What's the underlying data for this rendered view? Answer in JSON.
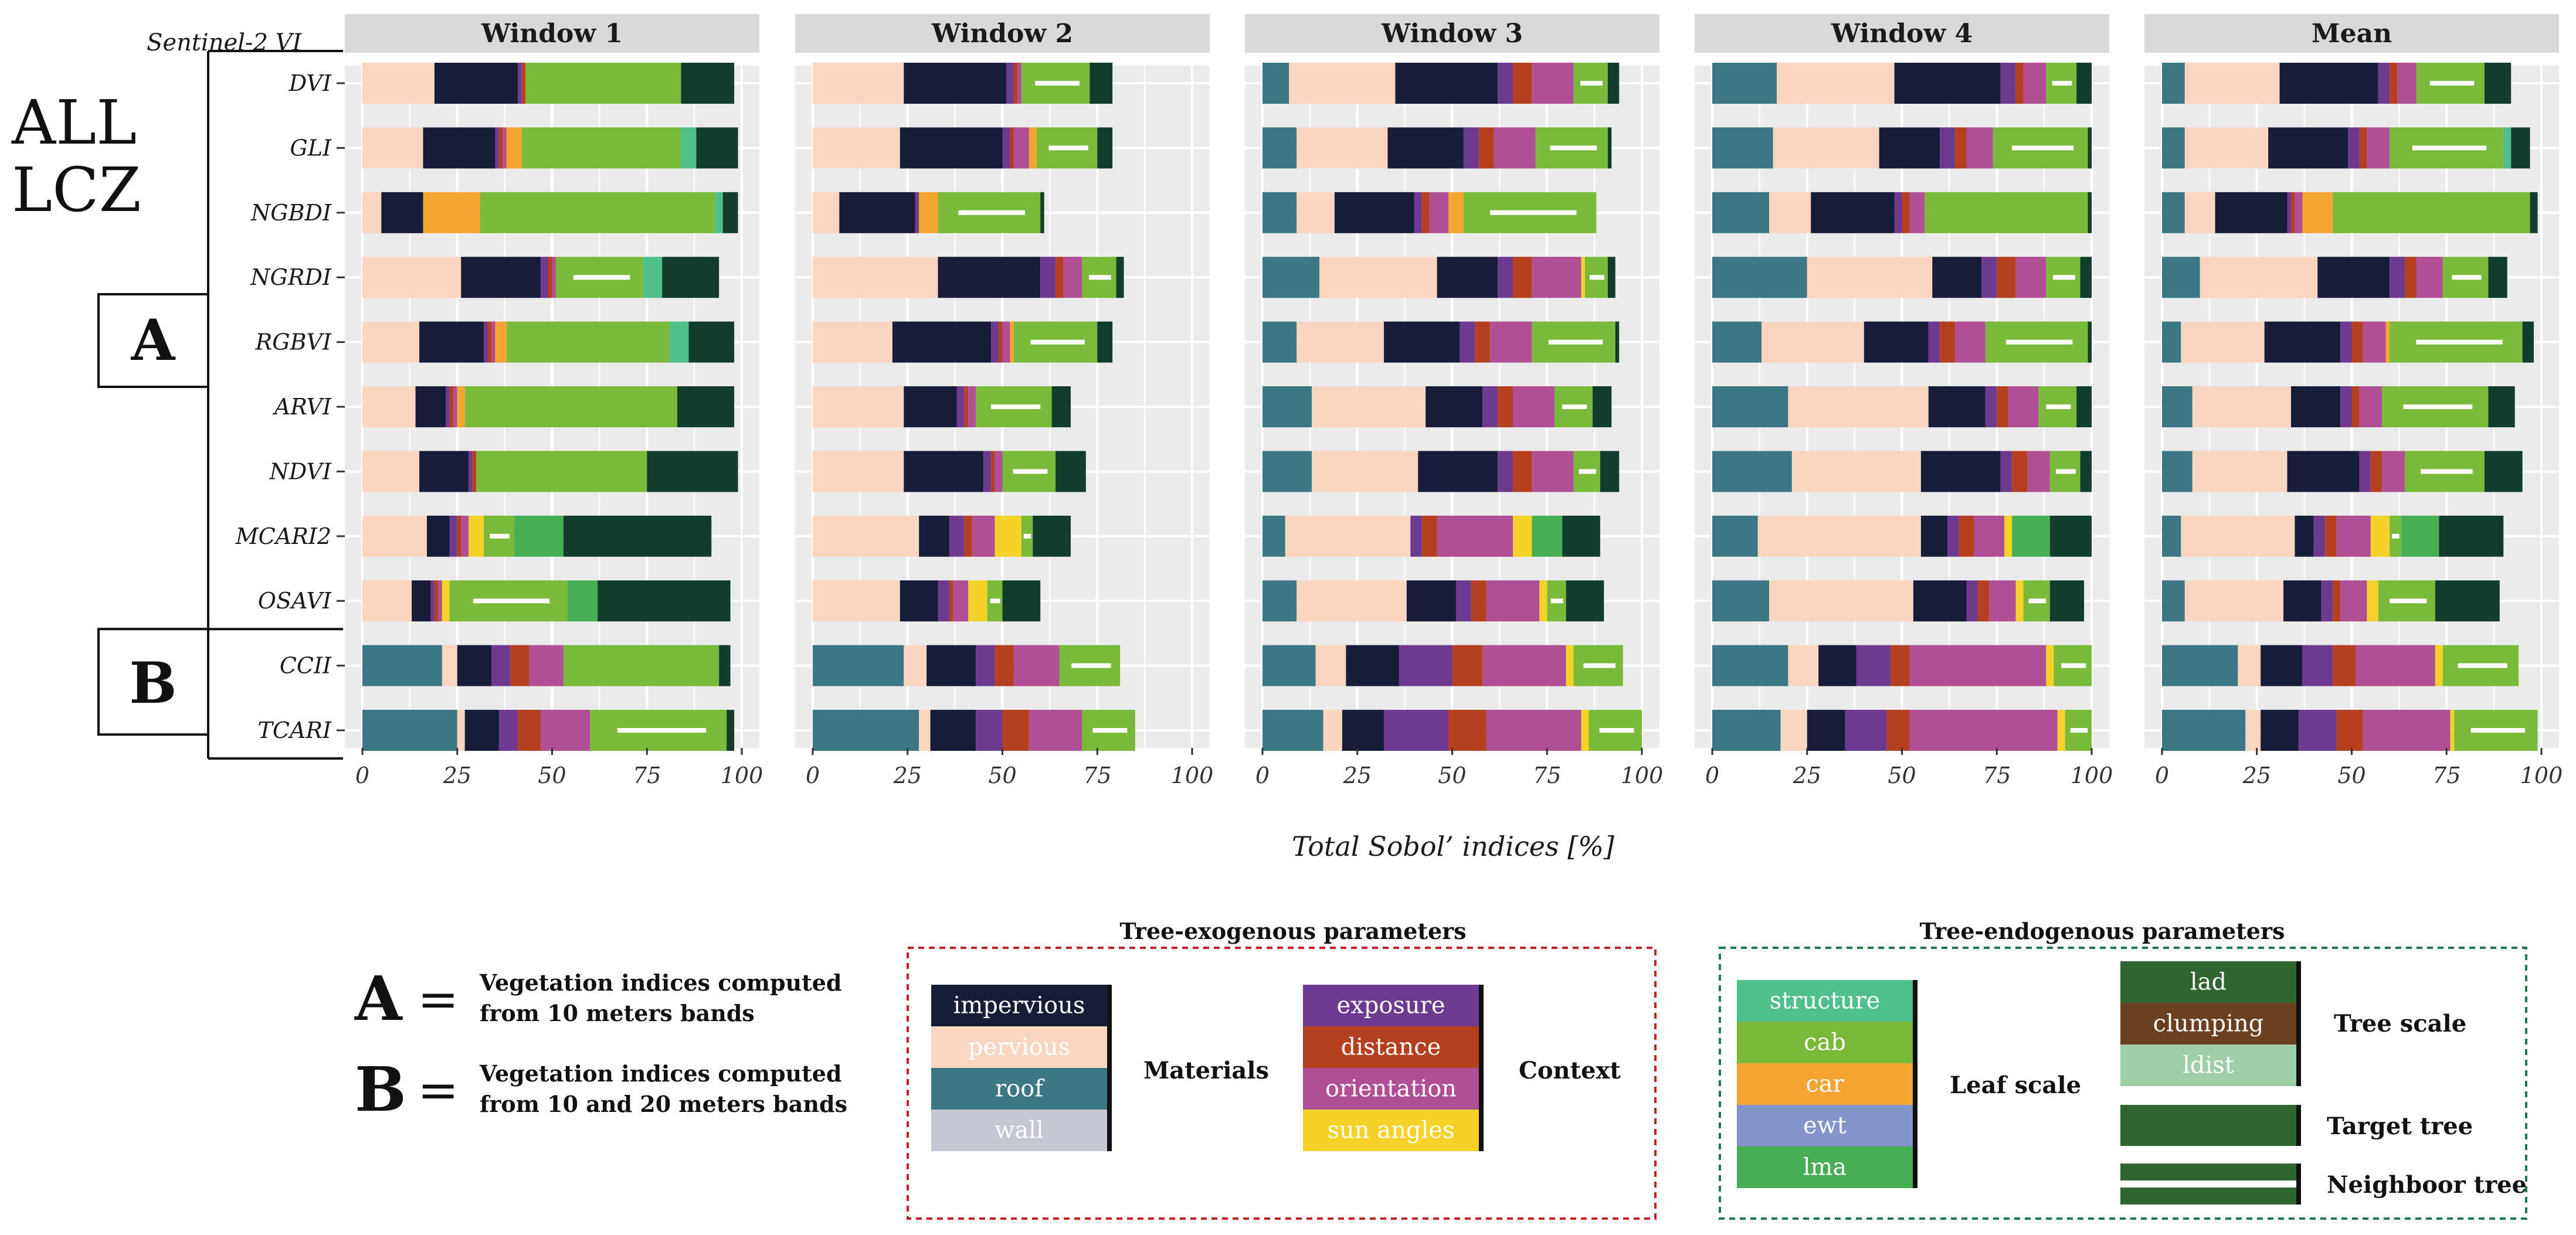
{
  "chart_data": {
    "type": "bar",
    "orientation": "horizontal",
    "stacked": true,
    "top_left_label": "Sentinel-2 VI",
    "row_group_label": [
      "ALL",
      "LCZ"
    ],
    "xlabel": "Total Sobol’ indices [%]",
    "xlim": [
      0,
      100
    ],
    "xticks": [
      "0",
      "25",
      "50",
      "75",
      "100"
    ],
    "panels": [
      "Window 1",
      "Window 2",
      "Window 3",
      "Window 4",
      "Mean"
    ],
    "indices": [
      "DVI",
      "GLI",
      "NGBDI",
      "NGRDI",
      "RGBVI",
      "ARVI",
      "NDVI",
      "MCARI2",
      "OSAVI",
      "CCII",
      "TCARI"
    ],
    "groups": [
      {
        "label": "A",
        "indices": [
          "DVI",
          "GLI",
          "NGBDI",
          "NGRDI",
          "RGBVI",
          "ARVI",
          "NDVI",
          "MCARI2",
          "OSAVI"
        ]
      },
      {
        "label": "B",
        "indices": [
          "CCII",
          "TCARI"
        ]
      }
    ],
    "parameters": [
      "roof",
      "pervious",
      "wall",
      "impervious",
      "exposure",
      "distance",
      "orientation",
      "sun angles",
      "ewt",
      "car",
      "cab",
      "structure",
      "lma",
      "lad",
      "clumping",
      "ldist"
    ],
    "colors": {
      "impervious": "#171c38",
      "pervious": "#fad5c0",
      "roof": "#3b7785",
      "wall": "#c5c7d3",
      "exposure": "#6e3a90",
      "distance": "#b5401f",
      "orientation": "#b04e96",
      "sun angles": "#f5d228",
      "structure": "#4fbf8c",
      "cab": "#7aba3a",
      "car": "#f4a431",
      "ewt": "#8294c9",
      "lma": "#48ae56",
      "lad": "#2f6630",
      "clumping": "#6a4020",
      "ldist": "#9fcfa9",
      "target tree": "#2f6630",
      "neighbour tree": "#2f6630",
      "dark tree": "#123d2c"
    },
    "values": {
      "Window 1": {
        "DVI": [
          0,
          19,
          0,
          22,
          1,
          1,
          0,
          0,
          0,
          0,
          41,
          0,
          0,
          14,
          0,
          0
        ],
        "GLI": [
          0,
          16,
          0,
          19,
          1,
          1,
          1,
          0,
          0,
          4,
          42,
          4,
          0,
          11,
          0,
          0
        ],
        "NGBDI": [
          0,
          5,
          0,
          11,
          0,
          0,
          0,
          0,
          0,
          15,
          62,
          2,
          0,
          4,
          0,
          0
        ],
        "NGRDI": [
          0,
          26,
          0,
          21,
          2,
          1,
          1,
          0,
          0,
          0,
          23,
          5,
          0,
          15,
          0,
          0
        ],
        "RGBVI": [
          0,
          15,
          0,
          17,
          1,
          1,
          1,
          0,
          0,
          3,
          43,
          5,
          0,
          12,
          0,
          0
        ],
        "ARVI": [
          0,
          14,
          0,
          8,
          1,
          1,
          1,
          0,
          0,
          2,
          56,
          0,
          0,
          15,
          0,
          0
        ],
        "NDVI": [
          0,
          15,
          0,
          13,
          1,
          1,
          0,
          0,
          0,
          0,
          45,
          0,
          0,
          24,
          0,
          0
        ],
        "MCARI2": [
          0,
          17,
          0,
          6,
          2,
          1,
          2,
          4,
          0,
          0,
          8,
          0,
          13,
          39,
          0,
          0
        ],
        "OSAVI": [
          0,
          13,
          0,
          5,
          1,
          1,
          1,
          2,
          0,
          0,
          31,
          0,
          8,
          35,
          0,
          0
        ],
        "CCII": [
          21,
          4,
          0,
          9,
          5,
          5,
          9,
          0,
          0,
          0,
          41,
          0,
          0,
          3,
          0,
          0
        ],
        "TCARI": [
          25,
          2,
          0,
          9,
          5,
          6,
          13,
          0,
          0,
          0,
          36,
          0,
          0,
          2,
          0,
          0
        ]
      },
      "Window 2": {
        "DVI": [
          0,
          24,
          0,
          27,
          2,
          1,
          1,
          0,
          0,
          0,
          18,
          0,
          0,
          6,
          0,
          0
        ],
        "GLI": [
          0,
          23,
          0,
          27,
          2,
          1,
          4,
          0,
          0,
          2,
          16,
          0,
          0,
          4,
          0,
          0
        ],
        "NGBDI": [
          0,
          7,
          0,
          20,
          1,
          0,
          0,
          0,
          0,
          5,
          27,
          0,
          0,
          1,
          0,
          0
        ],
        "NGRDI": [
          0,
          33,
          0,
          27,
          4,
          2,
          5,
          0,
          0,
          0,
          9,
          0,
          0,
          2,
          0,
          0
        ],
        "RGBVI": [
          0,
          21,
          0,
          26,
          2,
          1,
          2,
          0,
          0,
          1,
          22,
          0,
          0,
          4,
          0,
          0
        ],
        "ARVI": [
          0,
          24,
          0,
          14,
          2,
          1,
          2,
          0,
          0,
          0,
          20,
          0,
          0,
          5,
          0,
          0
        ],
        "NDVI": [
          0,
          24,
          0,
          21,
          2,
          1,
          2,
          0,
          0,
          0,
          14,
          0,
          0,
          8,
          0,
          0
        ],
        "MCARI2": [
          0,
          28,
          0,
          8,
          4,
          2,
          6,
          7,
          0,
          0,
          3,
          0,
          0,
          10,
          0,
          0
        ],
        "OSAVI": [
          0,
          23,
          0,
          10,
          3,
          1,
          4,
          5,
          0,
          0,
          4,
          0,
          0,
          10,
          0,
          0
        ],
        "CCII": [
          24,
          6,
          0,
          13,
          5,
          5,
          12,
          0,
          0,
          0,
          16,
          0,
          0,
          0,
          0,
          0
        ],
        "TCARI": [
          28,
          3,
          0,
          12,
          7,
          7,
          14,
          0,
          0,
          0,
          14,
          0,
          0,
          0,
          0,
          0
        ]
      },
      "Window 3": {
        "DVI": [
          7,
          28,
          0,
          27,
          4,
          5,
          11,
          0,
          0,
          0,
          9,
          0,
          0,
          3,
          0,
          0
        ],
        "GLI": [
          9,
          24,
          0,
          20,
          4,
          4,
          11,
          0,
          0,
          0,
          19,
          0,
          0,
          1,
          0,
          0
        ],
        "NGBDI": [
          9,
          10,
          0,
          21,
          2,
          2,
          5,
          0,
          0,
          4,
          35,
          0,
          0,
          0,
          0,
          0
        ],
        "NGRDI": [
          15,
          31,
          0,
          16,
          4,
          5,
          13,
          1,
          0,
          0,
          6,
          0,
          0,
          2,
          0,
          0
        ],
        "RGBVI": [
          9,
          23,
          0,
          20,
          4,
          4,
          11,
          0,
          0,
          0,
          22,
          0,
          0,
          1,
          0,
          0
        ],
        "ARVI": [
          13,
          30,
          0,
          15,
          4,
          4,
          11,
          0,
          0,
          0,
          10,
          0,
          0,
          5,
          0,
          0
        ],
        "NDVI": [
          13,
          28,
          0,
          21,
          4,
          5,
          11,
          0,
          0,
          0,
          7,
          0,
          0,
          5,
          0,
          0
        ],
        "MCARI2": [
          6,
          33,
          0,
          0,
          3,
          4,
          20,
          5,
          0,
          0,
          0,
          0,
          8,
          10,
          0,
          0
        ],
        "OSAVI": [
          9,
          29,
          0,
          13,
          4,
          4,
          14,
          2,
          0,
          0,
          5,
          0,
          0,
          10,
          0,
          0
        ],
        "CCII": [
          14,
          8,
          0,
          14,
          14,
          8,
          22,
          2,
          0,
          0,
          13,
          0,
          0,
          0,
          0,
          0
        ],
        "TCARI": [
          16,
          5,
          0,
          11,
          17,
          10,
          25,
          2,
          0,
          0,
          14,
          0,
          0,
          0,
          0,
          0
        ]
      },
      "Window 4": {
        "DVI": [
          17,
          31,
          0,
          28,
          4,
          2,
          6,
          0,
          0,
          0,
          8,
          0,
          0,
          4,
          0,
          0
        ],
        "GLI": [
          16,
          28,
          0,
          16,
          4,
          3,
          7,
          0,
          0,
          0,
          25,
          0,
          0,
          1,
          0,
          0
        ],
        "NGBDI": [
          15,
          11,
          0,
          22,
          2,
          2,
          4,
          0,
          0,
          0,
          43,
          0,
          0,
          1,
          0,
          0
        ],
        "NGRDI": [
          25,
          33,
          0,
          13,
          4,
          5,
          8,
          0,
          0,
          0,
          9,
          0,
          0,
          3,
          0,
          0
        ],
        "RGBVI": [
          13,
          27,
          0,
          17,
          3,
          4,
          8,
          0,
          0,
          0,
          27,
          0,
          0,
          1,
          0,
          0
        ],
        "ARVI": [
          20,
          37,
          0,
          15,
          3,
          3,
          8,
          0,
          0,
          0,
          10,
          0,
          0,
          4,
          0,
          0
        ],
        "NDVI": [
          21,
          34,
          0,
          21,
          3,
          4,
          6,
          0,
          0,
          0,
          8,
          0,
          0,
          3,
          0,
          0
        ],
        "MCARI2": [
          12,
          43,
          0,
          7,
          3,
          4,
          8,
          2,
          0,
          0,
          0,
          0,
          10,
          11,
          0,
          0
        ],
        "OSAVI": [
          15,
          38,
          0,
          14,
          3,
          3,
          7,
          2,
          0,
          0,
          7,
          0,
          0,
          9,
          0,
          0
        ],
        "CCII": [
          20,
          8,
          0,
          10,
          9,
          5,
          36,
          2,
          0,
          0,
          10,
          0,
          0,
          0,
          0,
          0
        ],
        "TCARI": [
          18,
          7,
          0,
          10,
          11,
          6,
          39,
          2,
          0,
          0,
          7,
          0,
          0,
          0,
          0,
          0
        ]
      },
      "Mean": {
        "DVI": [
          6,
          25,
          0,
          26,
          3,
          2,
          5,
          0,
          0,
          0,
          18,
          0,
          0,
          7,
          0,
          0
        ],
        "GLI": [
          6,
          22,
          0,
          21,
          3,
          2,
          6,
          0,
          0,
          0,
          30,
          2,
          0,
          5,
          0,
          0
        ],
        "NGBDI": [
          6,
          8,
          0,
          19,
          1,
          1,
          2,
          0,
          0,
          8,
          52,
          0,
          0,
          2,
          0,
          0
        ],
        "NGRDI": [
          10,
          31,
          0,
          19,
          4,
          3,
          7,
          0,
          0,
          0,
          12,
          0,
          0,
          5,
          0,
          0
        ],
        "RGBVI": [
          5,
          22,
          0,
          20,
          3,
          3,
          6,
          0,
          0,
          1,
          35,
          0,
          0,
          3,
          0,
          0
        ],
        "ARVI": [
          8,
          26,
          0,
          13,
          3,
          2,
          6,
          0,
          0,
          0,
          28,
          0,
          0,
          7,
          0,
          0
        ],
        "NDVI": [
          8,
          25,
          0,
          19,
          3,
          3,
          6,
          0,
          0,
          0,
          21,
          0,
          0,
          10,
          0,
          0
        ],
        "MCARI2": [
          5,
          30,
          0,
          5,
          3,
          3,
          9,
          5,
          0,
          0,
          3,
          0,
          10,
          17,
          0,
          0
        ],
        "OSAVI": [
          6,
          26,
          0,
          10,
          3,
          2,
          7,
          3,
          0,
          0,
          15,
          0,
          0,
          17,
          0,
          0
        ],
        "CCII": [
          20,
          6,
          0,
          11,
          8,
          6,
          21,
          2,
          0,
          0,
          20,
          0,
          0,
          0,
          0,
          0
        ],
        "TCARI": [
          22,
          4,
          0,
          10,
          10,
          7,
          23,
          1,
          0,
          0,
          22,
          0,
          0,
          0,
          0,
          0
        ]
      }
    }
  },
  "definitions": [
    {
      "letter": "A",
      "eq": "=",
      "line1": "Vegetation indices computed",
      "line2": "from 10 meters bands"
    },
    {
      "letter": "B",
      "eq": "=",
      "line1": "Vegetation indices computed",
      "line2": "from 10 and 20 meters bands"
    }
  ],
  "legend": {
    "exogenous_title": "Tree-exogenous parameters",
    "endogenous_title": "Tree-endogenous parameters",
    "materials_items": [
      "impervious",
      "pervious",
      "roof",
      "wall"
    ],
    "materials_label": "Materials",
    "context_items": [
      "exposure",
      "distance",
      "orientation",
      "sun angles"
    ],
    "context_label": "Context",
    "leaf_items": [
      "structure",
      "cab",
      "car",
      "ewt",
      "lma"
    ],
    "leaf_label": "Leaf scale",
    "tree_items": [
      "lad",
      "clumping",
      "ldist"
    ],
    "tree_label": "Tree scale",
    "target_label": "Target tree",
    "neighbour_label": "Neighboor tree"
  }
}
